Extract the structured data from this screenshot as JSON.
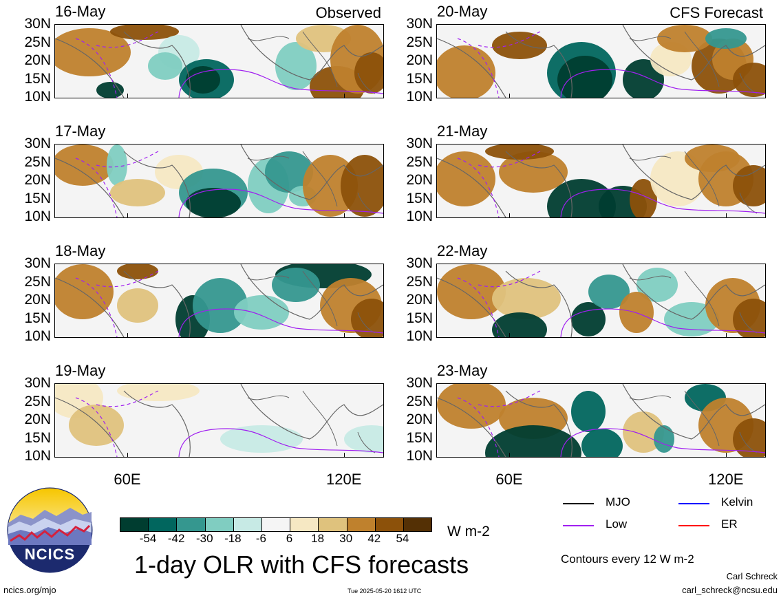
{
  "panels": [
    {
      "date": "16-May",
      "corner": "Observed",
      "pattern": "obs1"
    },
    {
      "date": "17-May",
      "corner": "",
      "pattern": "obs2"
    },
    {
      "date": "18-May",
      "corner": "",
      "pattern": "obs3"
    },
    {
      "date": "19-May",
      "corner": "",
      "pattern": "obs4"
    },
    {
      "date": "20-May",
      "corner": "CFS Forecast",
      "pattern": "fc1"
    },
    {
      "date": "21-May",
      "corner": "",
      "pattern": "fc2"
    },
    {
      "date": "22-May",
      "corner": "",
      "pattern": "fc3"
    },
    {
      "date": "23-May",
      "corner": "",
      "pattern": "fc4"
    }
  ],
  "lat_labels": [
    "30N",
    "25N",
    "20N",
    "15N",
    "10N"
  ],
  "lon_labels": [
    "60E",
    "120E"
  ],
  "colorbar": {
    "labels": [
      "-54",
      "-42",
      "-30",
      "-18",
      "-6",
      "6",
      "18",
      "30",
      "42",
      "54"
    ],
    "colors": [
      "#003d30",
      "#01665e",
      "#35978f",
      "#80cdc1",
      "#c7eae5",
      "#f5f5f5",
      "#f6e8c3",
      "#dfc27d",
      "#bf812d",
      "#8c510a",
      "#543005"
    ],
    "units": "W m-2"
  },
  "legend": {
    "items": [
      {
        "label": "MJO",
        "color": "#000000"
      },
      {
        "label": "Kelvin",
        "color": "#0000ff"
      },
      {
        "label": "Low",
        "color": "#a020f0"
      },
      {
        "label": "ER",
        "color": "#ff0000"
      }
    ],
    "contours": "Contours every 12 W m-2"
  },
  "title": "1-day OLR with CFS forecasts",
  "logo_text": "NCICS",
  "footer": {
    "left": "ncics.org/mjo",
    "center": "Tue 2025-05-20 1612 UTC",
    "author": "Carl Schreck",
    "email": "carl_schreck@ncsu.edu"
  },
  "chart_data": {
    "type": "heatmap",
    "title": "1-day OLR with CFS forecasts",
    "variable": "OLR anomaly",
    "units": "W m-2",
    "lat_range": [
      "10N",
      "30N"
    ],
    "lat_ticks": [
      "30N",
      "25N",
      "20N",
      "15N",
      "10N"
    ],
    "lon_ticks": [
      "60E",
      "120E"
    ],
    "color_levels": [
      -54,
      -42,
      -30,
      -18,
      -6,
      6,
      18,
      30,
      42,
      54
    ],
    "contour_interval": 12,
    "observed_dates": [
      "16-May",
      "17-May",
      "18-May",
      "19-May"
    ],
    "forecast_dates": [
      "20-May",
      "21-May",
      "22-May",
      "23-May"
    ]
  }
}
